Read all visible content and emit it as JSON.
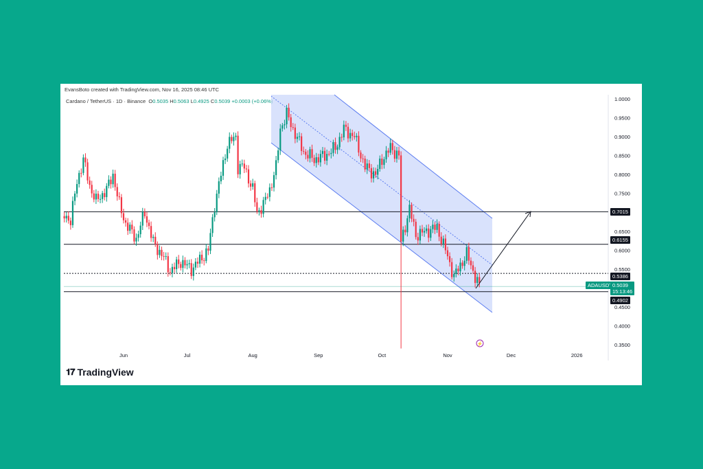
{
  "attribution": "EvansBoto created with TradingView.com, Nov 16, 2025 08:46 UTC",
  "legend": {
    "symbol": "Cardano / TetherUS · 1D · Binance",
    "o_label": "O",
    "o": "0.5035",
    "h_label": "H",
    "h": "0.5063",
    "l_label": "L",
    "l": "0.4925",
    "c_label": "C",
    "c": "0.5039",
    "change": "+0.0003 (+0.06%)"
  },
  "brand": "TradingView",
  "colors": {
    "background": "#07a88c",
    "up": "#089981",
    "down": "#f23645",
    "channel_fill": "#c9d5fb",
    "channel_line": "#5b7cf0",
    "badge": "#131722"
  },
  "chart_data": {
    "type": "candlestick",
    "title": "",
    "symbol_badge": "ADAUSDT",
    "last_price": "0.5039",
    "countdown": "15:13:46",
    "y_ticks": [
      "1.0000",
      "0.9500",
      "0.9000",
      "0.8500",
      "0.8000",
      "0.7500",
      "0.6500",
      "0.6000",
      "0.5500",
      "0.4500",
      "0.4000",
      "0.3500"
    ],
    "x_ticks": [
      "Jun",
      "Jul",
      "Aug",
      "Sep",
      "Oct",
      "Nov",
      "Dec",
      "2026"
    ],
    "ylim": [
      0.35,
      1.0
    ],
    "xlim": [
      "2025-05-04",
      "2026-01-10"
    ],
    "levels": [
      {
        "label": "0.7015",
        "value": 0.7015,
        "style": "solid"
      },
      {
        "label": "0.6155",
        "value": 0.6155,
        "style": "solid"
      },
      {
        "label": "0.5386",
        "value": 0.5386,
        "style": "dotted"
      },
      {
        "label": "0.4902",
        "value": 0.4902,
        "style": "solid"
      }
    ],
    "close_keypoints": [
      [
        "2025-05-04",
        0.69
      ],
      [
        "2025-05-07",
        0.68
      ],
      [
        "2025-05-10",
        0.78
      ],
      [
        "2025-05-13",
        0.84
      ],
      [
        "2025-05-16",
        0.77
      ],
      [
        "2025-05-19",
        0.73
      ],
      [
        "2025-05-24",
        0.76
      ],
      [
        "2025-05-27",
        0.8
      ],
      [
        "2025-05-30",
        0.72
      ],
      [
        "2025-06-02",
        0.67
      ],
      [
        "2025-06-07",
        0.63
      ],
      [
        "2025-06-11",
        0.7
      ],
      [
        "2025-06-15",
        0.62
      ],
      [
        "2025-06-20",
        0.58
      ],
      [
        "2025-06-23",
        0.545
      ],
      [
        "2025-06-28",
        0.57
      ],
      [
        "2025-07-03",
        0.55
      ],
      [
        "2025-07-08",
        0.58
      ],
      [
        "2025-07-11",
        0.6
      ],
      [
        "2025-07-14",
        0.72
      ],
      [
        "2025-07-17",
        0.8
      ],
      [
        "2025-07-20",
        0.88
      ],
      [
        "2025-07-24",
        0.9
      ],
      [
        "2025-07-25",
        0.82
      ],
      [
        "2025-07-28",
        0.82
      ],
      [
        "2025-08-01",
        0.76
      ],
      [
        "2025-08-03",
        0.7
      ],
      [
        "2025-08-06",
        0.72
      ],
      [
        "2025-08-09",
        0.76
      ],
      [
        "2025-08-12",
        0.82
      ],
      [
        "2025-08-14",
        0.92
      ],
      [
        "2025-08-17",
        0.96
      ],
      [
        "2025-08-20",
        0.92
      ],
      [
        "2025-08-25",
        0.86
      ],
      [
        "2025-08-30",
        0.84
      ],
      [
        "2025-09-04",
        0.85
      ],
      [
        "2025-09-09",
        0.87
      ],
      [
        "2025-09-13",
        0.92
      ],
      [
        "2025-09-18",
        0.9
      ],
      [
        "2025-09-23",
        0.82
      ],
      [
        "2025-09-28",
        0.8
      ],
      [
        "2025-10-01",
        0.84
      ],
      [
        "2025-10-05",
        0.87
      ],
      [
        "2025-10-09",
        0.85
      ],
      [
        "2025-10-10",
        0.62
      ],
      [
        "2025-10-14",
        0.71
      ],
      [
        "2025-10-17",
        0.64
      ],
      [
        "2025-10-22",
        0.65
      ],
      [
        "2025-10-27",
        0.66
      ],
      [
        "2025-10-31",
        0.6
      ],
      [
        "2025-11-04",
        0.53
      ],
      [
        "2025-11-07",
        0.56
      ],
      [
        "2025-11-10",
        0.59
      ],
      [
        "2025-11-14",
        0.53
      ],
      [
        "2025-11-16",
        0.5039
      ]
    ]
  }
}
